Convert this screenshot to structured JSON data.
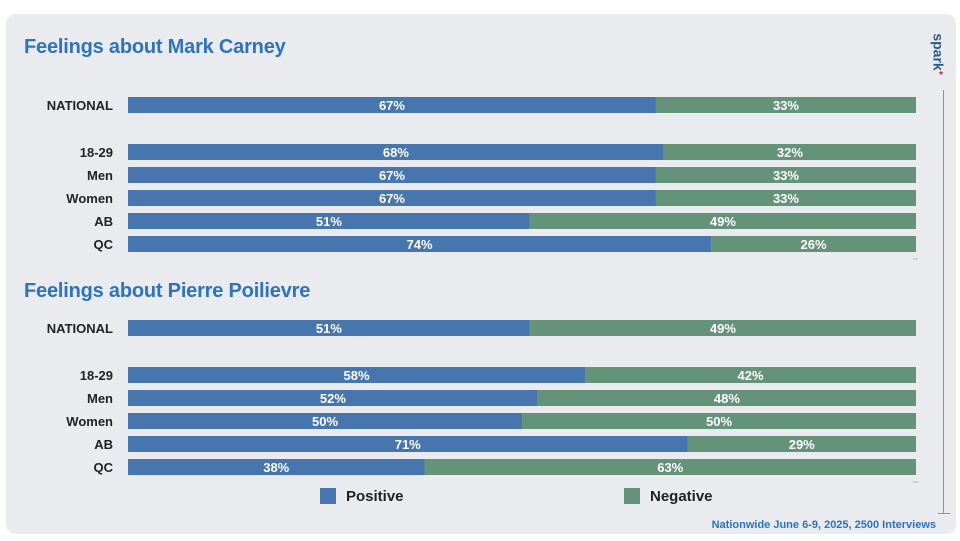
{
  "colors": {
    "positive": "#4676ad",
    "negative": "#64937a",
    "accent": "#2f73b8"
  },
  "legend": {
    "positive": "Positive",
    "negative": "Negative"
  },
  "footer": "Nationwide June 6-9, 2025, 2500 Interviews",
  "brand": {
    "name": "spark",
    "mark": "*"
  },
  "chart_data": [
    {
      "type": "bar",
      "orientation": "horizontal",
      "stacked": true,
      "title": "Feelings about Mark Carney",
      "categories": [
        "NATIONAL",
        "18-29",
        "Men",
        "Women",
        "AB",
        "QC"
      ],
      "series": [
        {
          "name": "Positive",
          "values": [
            67,
            68,
            67,
            67,
            51,
            74
          ],
          "labels": [
            "67%",
            "68%",
            "67%",
            "67%",
            "51%",
            "74%"
          ]
        },
        {
          "name": "Negative",
          "values": [
            33,
            32,
            33,
            33,
            49,
            26
          ],
          "labels": [
            "33%",
            "32%",
            "33%",
            "33%",
            "49%",
            "26%"
          ]
        }
      ],
      "xlim": [
        0,
        100
      ],
      "legend": "bottom"
    },
    {
      "type": "bar",
      "orientation": "horizontal",
      "stacked": true,
      "title": "Feelings about Pierre Poilievre",
      "categories": [
        "NATIONAL",
        "18-29",
        "Men",
        "Women",
        "AB",
        "QC"
      ],
      "series": [
        {
          "name": "Positive",
          "values": [
            51,
            58,
            52,
            50,
            71,
            38
          ],
          "labels": [
            "51%",
            "58%",
            "52%",
            "50%",
            "71%",
            "38%"
          ]
        },
        {
          "name": "Negative",
          "values": [
            49,
            42,
            48,
            50,
            29,
            63
          ],
          "labels": [
            "49%",
            "42%",
            "48%",
            "50%",
            "29%",
            "63%"
          ]
        }
      ],
      "xlim": [
        0,
        100
      ],
      "legend": "bottom"
    }
  ]
}
